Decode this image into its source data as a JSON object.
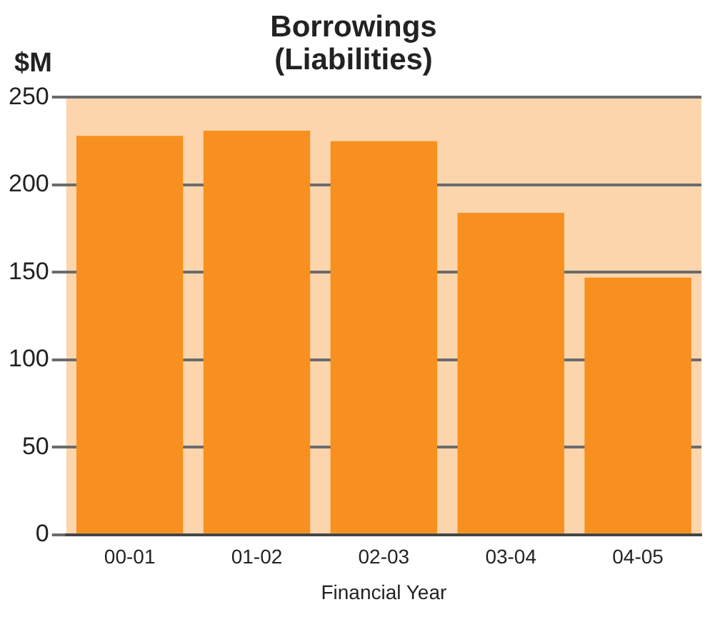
{
  "chart_data": {
    "type": "bar",
    "title": "Borrowings\n(Liabilities)",
    "ylabel": "$M",
    "xlabel": "Financial Year",
    "categories": [
      "00-01",
      "01-02",
      "02-03",
      "03-04",
      "04-05"
    ],
    "values": [
      228,
      231,
      225,
      184,
      147
    ],
    "color": "#f7901e",
    "ylim": [
      0,
      250
    ],
    "yticks": [
      0,
      50,
      100,
      150,
      200,
      250
    ],
    "grid": "y",
    "legend": false,
    "bands": [
      {
        "axis": "y",
        "from": 0,
        "to": 250,
        "color": "#fdd5ad"
      }
    ]
  }
}
